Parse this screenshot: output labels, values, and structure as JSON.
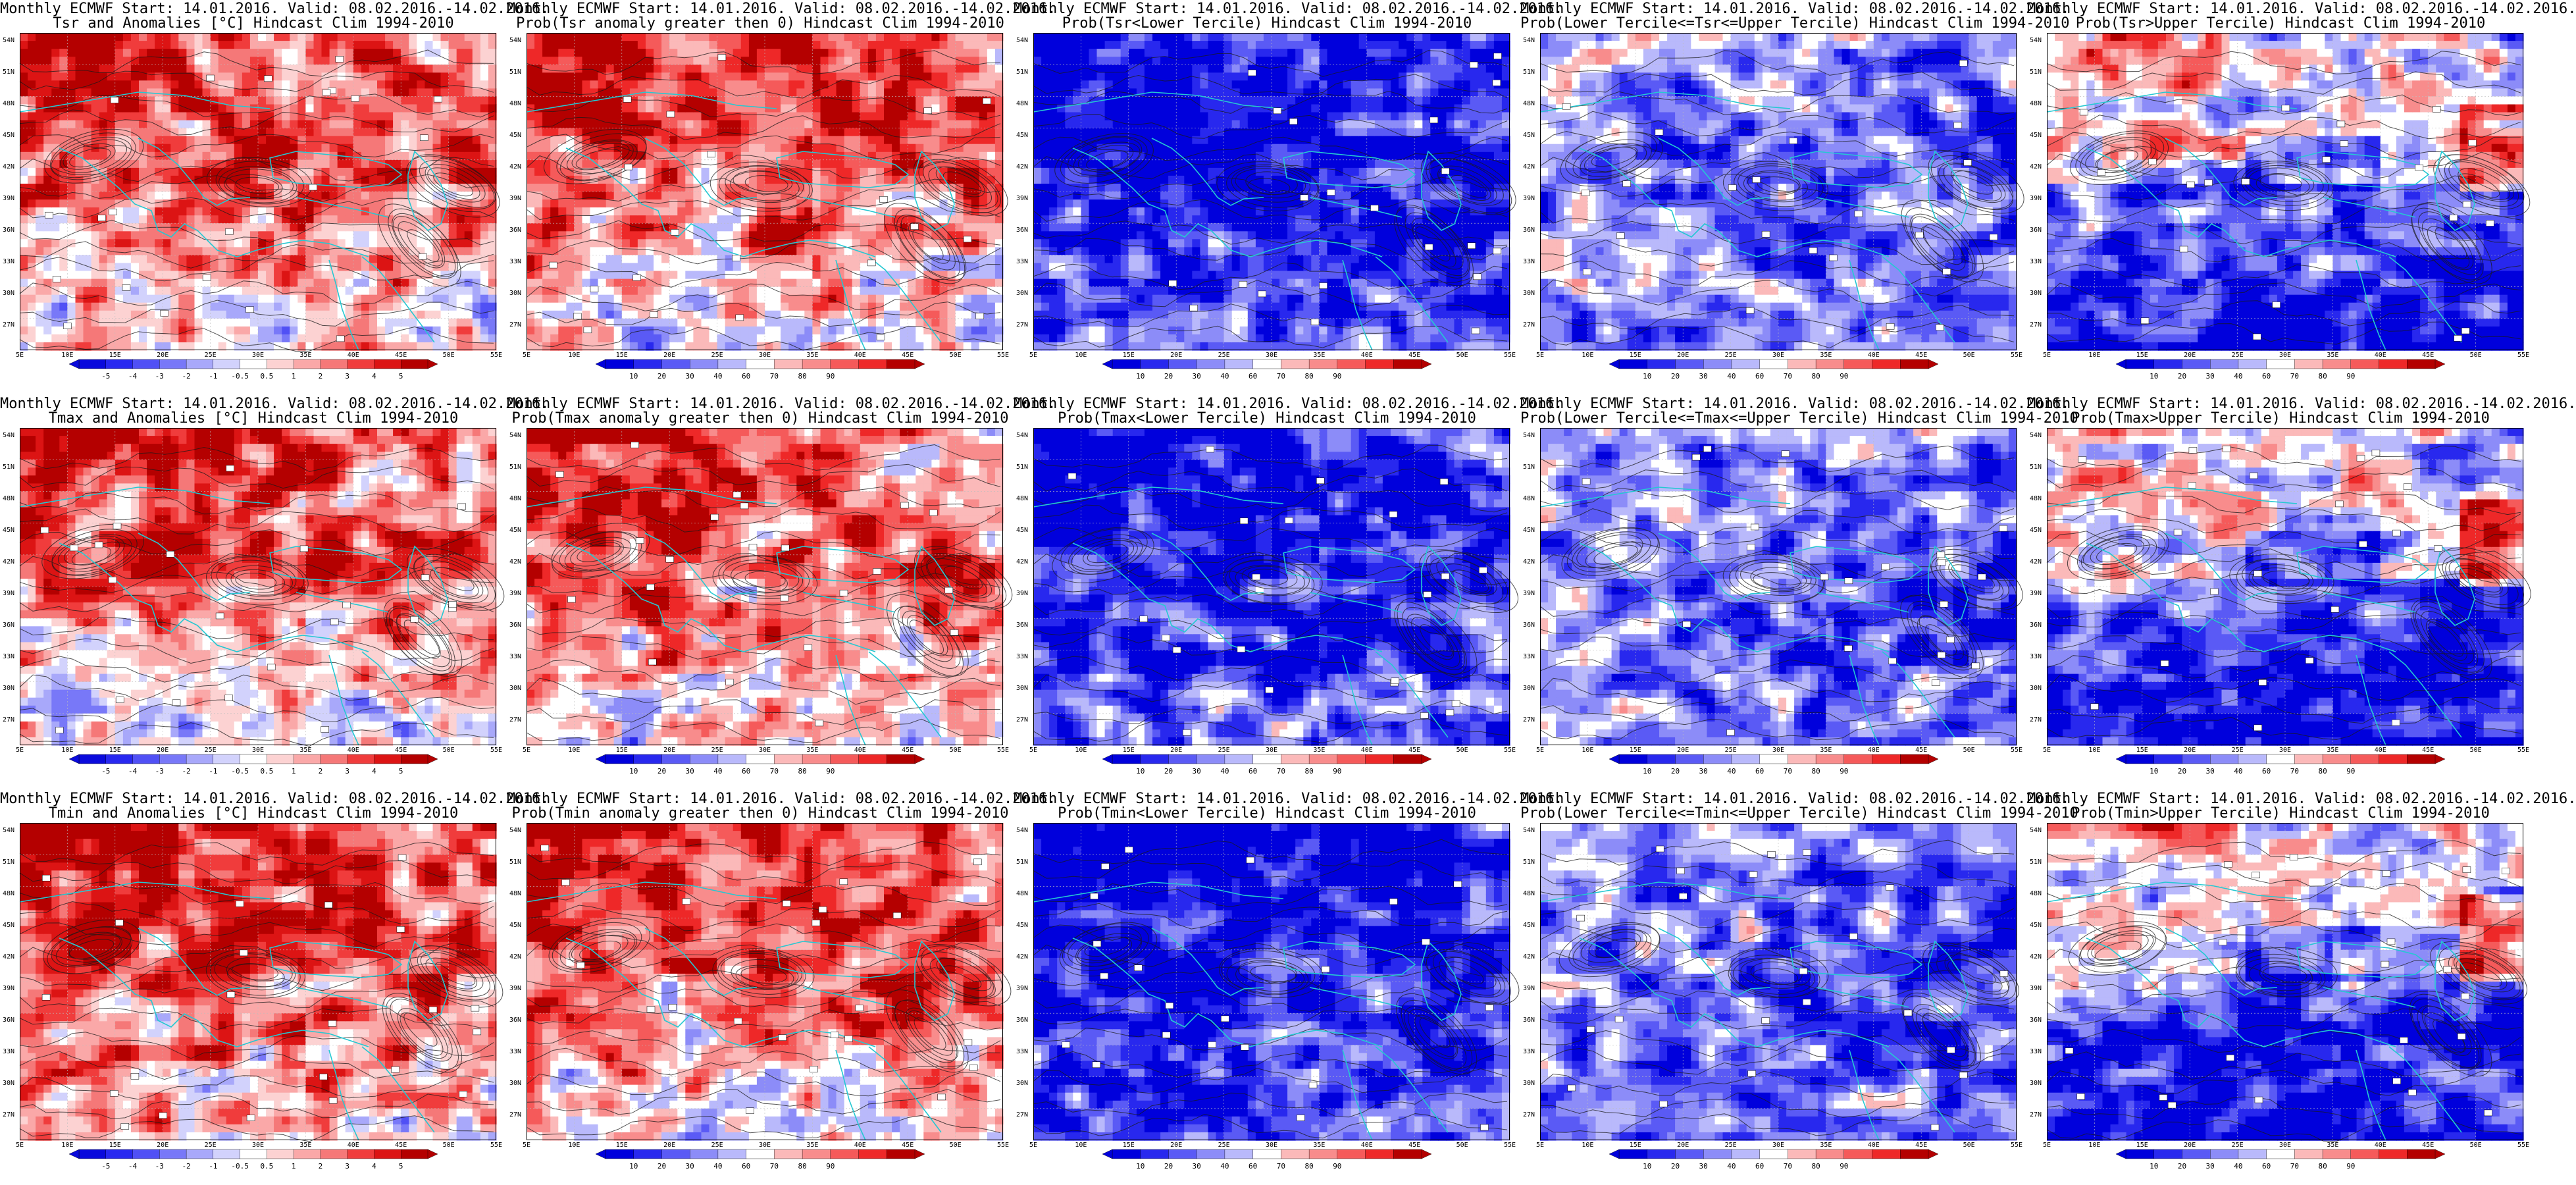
{
  "panels": [
    {
      "title1": "Monthly ECMWF Start: 14.01.2016. Valid: 08.02.2016.-14.02.2016.",
      "title2": "Tsr and Anomalies [°C] Hindcast Clim 1994-2010",
      "scale": "anomaly",
      "colorbar_labels": [
        "-5",
        "-4",
        "-3",
        "-2",
        "-1",
        "-0.5",
        "0.5",
        "1",
        "2",
        "3",
        "4",
        "5"
      ]
    },
    {
      "title1": "Monthly ECMWF Start: 14.01.2016. Valid: 08.02.2016.-14.02.2016.",
      "title2": "Prob(Tsr anomaly greater then 0) Hindcast Clim 1994-2010",
      "scale": "prob",
      "colorbar_labels": [
        "10",
        "20",
        "30",
        "40",
        "60",
        "70",
        "80",
        "90"
      ]
    },
    {
      "title1": "Monthly ECMWF Start: 14.01.2016. Valid: 08.02.2016.-14.02.2016.",
      "title2": "Prob(Tsr<Lower Tercile) Hindcast Clim 1994-2010",
      "scale": "prob",
      "colorbar_labels": [
        "10",
        "20",
        "30",
        "40",
        "60",
        "70",
        "80",
        "90"
      ]
    },
    {
      "title1": "Monthly ECMWF Start: 14.01.2016. Valid: 08.02.2016.-14.02.2016.",
      "title2": "Prob(Lower Tercile<=Tsr<=Upper Tercile) Hindcast Clim 1994-2010",
      "scale": "prob",
      "colorbar_labels": [
        "10",
        "20",
        "30",
        "40",
        "60",
        "70",
        "80",
        "90"
      ]
    },
    {
      "title1": "Monthly ECMWF Start: 14.01.2016. Valid: 08.02.2016.-14.02.2016.",
      "title2": "Prob(Tsr>Upper Tercile) Hindcast Clim 1994-2010",
      "scale": "prob",
      "colorbar_labels": [
        "10",
        "20",
        "30",
        "40",
        "60",
        "70",
        "80",
        "90"
      ]
    },
    {
      "title1": "Monthly ECMWF Start: 14.01.2016. Valid: 08.02.2016.-14.02.2016.",
      "title2": "Tmax and Anomalies [°C] Hindcast Clim 1994-2010",
      "scale": "anomaly",
      "colorbar_labels": [
        "-5",
        "-4",
        "-3",
        "-2",
        "-1",
        "-0.5",
        "0.5",
        "1",
        "2",
        "3",
        "4",
        "5"
      ]
    },
    {
      "title1": "Monthly ECMWF Start: 14.01.2016. Valid: 08.02.2016.-14.02.2016.",
      "title2": "Prob(Tmax anomaly greater then 0) Hindcast Clim 1994-2010",
      "scale": "prob",
      "colorbar_labels": [
        "10",
        "20",
        "30",
        "40",
        "60",
        "70",
        "80",
        "90"
      ]
    },
    {
      "title1": "Monthly ECMWF Start: 14.01.2016. Valid: 08.02.2016.-14.02.2016.",
      "title2": "Prob(Tmax<Lower Tercile) Hindcast Clim 1994-2010",
      "scale": "prob",
      "colorbar_labels": [
        "10",
        "20",
        "30",
        "40",
        "60",
        "70",
        "80",
        "90"
      ]
    },
    {
      "title1": "Monthly ECMWF Start: 14.01.2016. Valid: 08.02.2016.-14.02.2016.",
      "title2": "Prob(Lower Tercile<=Tmax<=Upper Tercile) Hindcast Clim 1994-2010",
      "scale": "prob",
      "colorbar_labels": [
        "10",
        "20",
        "30",
        "40",
        "60",
        "70",
        "80",
        "90"
      ]
    },
    {
      "title1": "Monthly ECMWF Start: 14.01.2016. Valid: 08.02.2016.-14.02.2016.",
      "title2": "Prob(Tmax>Upper Tercile) Hindcast Clim 1994-2010",
      "scale": "prob",
      "colorbar_labels": [
        "10",
        "20",
        "30",
        "40",
        "60",
        "70",
        "80",
        "90"
      ]
    },
    {
      "title1": "Monthly ECMWF Start: 14.01.2016. Valid: 08.02.2016.-14.02.2016.",
      "title2": "Tmin and Anomalies [°C] Hindcast Clim 1994-2010",
      "scale": "anomaly",
      "colorbar_labels": [
        "-5",
        "-4",
        "-3",
        "-2",
        "-1",
        "-0.5",
        "0.5",
        "1",
        "2",
        "3",
        "4",
        "5"
      ]
    },
    {
      "title1": "Monthly ECMWF Start: 14.01.2016. Valid: 08.02.2016.-14.02.2016.",
      "title2": "Prob(Tmin anomaly greater then 0) Hindcast Clim 1994-2010",
      "scale": "prob",
      "colorbar_labels": [
        "10",
        "20",
        "30",
        "40",
        "60",
        "70",
        "80",
        "90"
      ]
    },
    {
      "title1": "Monthly ECMWF Start: 14.01.2016. Valid: 08.02.2016.-14.02.2016.",
      "title2": "Prob(Tmin<Lower Tercile) Hindcast Clim 1994-2010",
      "scale": "prob",
      "colorbar_labels": [
        "10",
        "20",
        "30",
        "40",
        "60",
        "70",
        "80",
        "90"
      ]
    },
    {
      "title1": "Monthly ECMWF Start: 14.01.2016. Valid: 08.02.2016.-14.02.2016.",
      "title2": "Prob(Lower Tercile<=Tmin<=Upper Tercile) Hindcast Clim 1994-2010",
      "scale": "prob",
      "colorbar_labels": [
        "10",
        "20",
        "30",
        "40",
        "60",
        "70",
        "80",
        "90"
      ]
    },
    {
      "title1": "Monthly ECMWF Start: 14.01.2016. Valid: 08.02.2016.-14.02.2016.",
      "title2": "Prob(Tmin>Upper Tercile) Hindcast Clim 1994-2010",
      "scale": "prob",
      "colorbar_labels": [
        "10",
        "20",
        "30",
        "40",
        "60",
        "70",
        "80",
        "90"
      ]
    }
  ],
  "map_axes": {
    "lat_labels": [
      "54N",
      "51N",
      "48N",
      "45N",
      "42N",
      "39N",
      "36N",
      "33N",
      "30N",
      "27N"
    ],
    "lon_labels": [
      "5E",
      "10E",
      "15E",
      "20E",
      "25E",
      "30E",
      "35E",
      "40E",
      "45E",
      "50E",
      "55E"
    ]
  },
  "colors": {
    "anomaly_scale": [
      "#0a0adc",
      "#2828f0",
      "#5050f5",
      "#7878f8",
      "#a8a8fa",
      "#d2d2fc",
      "#ffffff",
      "#fcd2d2",
      "#faa8a8",
      "#f57878",
      "#f03c3c",
      "#dc1414",
      "#b40000"
    ],
    "prob_scale": [
      "#0000dc",
      "#2828ee",
      "#5a5af5",
      "#8c8cf8",
      "#b9b9fb",
      "#ffffff",
      "#fbb9b9",
      "#f88c8c",
      "#f55a5a",
      "#ee2828",
      "#b40000"
    ],
    "coast": "#25c8d2",
    "contour": "#1a1a1a"
  }
}
